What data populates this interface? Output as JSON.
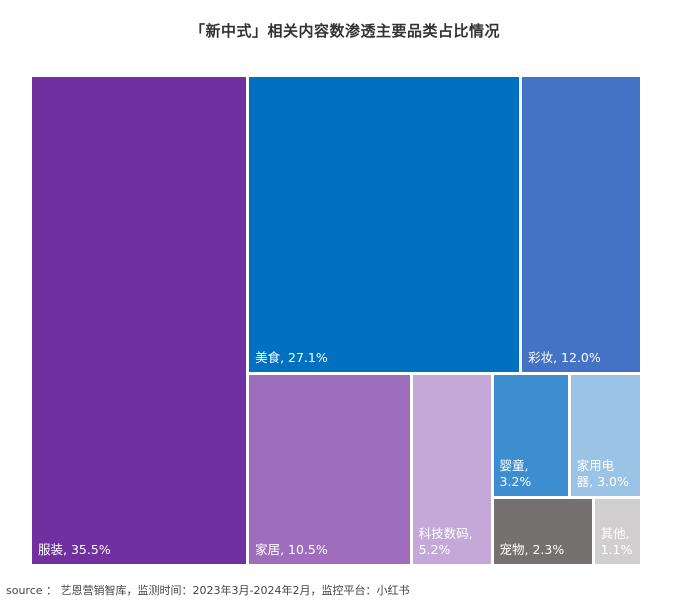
{
  "chart_data": {
    "type": "treemap",
    "title": "「新中式」相关内容数渗透主要品类占比情况",
    "unit": "%",
    "items": [
      {
        "name": "服装",
        "value": 35.5,
        "label": "服装, 35.5%",
        "color": "#7030a0"
      },
      {
        "name": "美食",
        "value": 27.1,
        "label": "美食, 27.1%",
        "color": "#0070c0"
      },
      {
        "name": "彩妆",
        "value": 12.0,
        "label": "彩妆, 12.0%",
        "color": "#4472c4"
      },
      {
        "name": "家居",
        "value": 10.5,
        "label": "家居, 10.5%",
        "color": "#9e6ebc"
      },
      {
        "name": "科技数码",
        "value": 5.2,
        "label": "科技数码,\n5.2%",
        "color": "#c4a8d8"
      },
      {
        "name": "婴童",
        "value": 3.2,
        "label": "婴童,\n3.2%",
        "color": "#3d8ed0"
      },
      {
        "name": "家用电器",
        "value": 3.0,
        "label": "家用电\n器, 3.0%",
        "color": "#9bc3e6"
      },
      {
        "name": "宠物",
        "value": 2.3,
        "label": "宠物, 2.3%",
        "color": "#767171"
      },
      {
        "name": "其他",
        "value": 1.1,
        "label": "其他,\n1.1%",
        "color": "#d0cece"
      }
    ],
    "source": "source ： 艺恩营销智库，监测时间：2023年3月-2024年2月，监控平台：小红书"
  }
}
